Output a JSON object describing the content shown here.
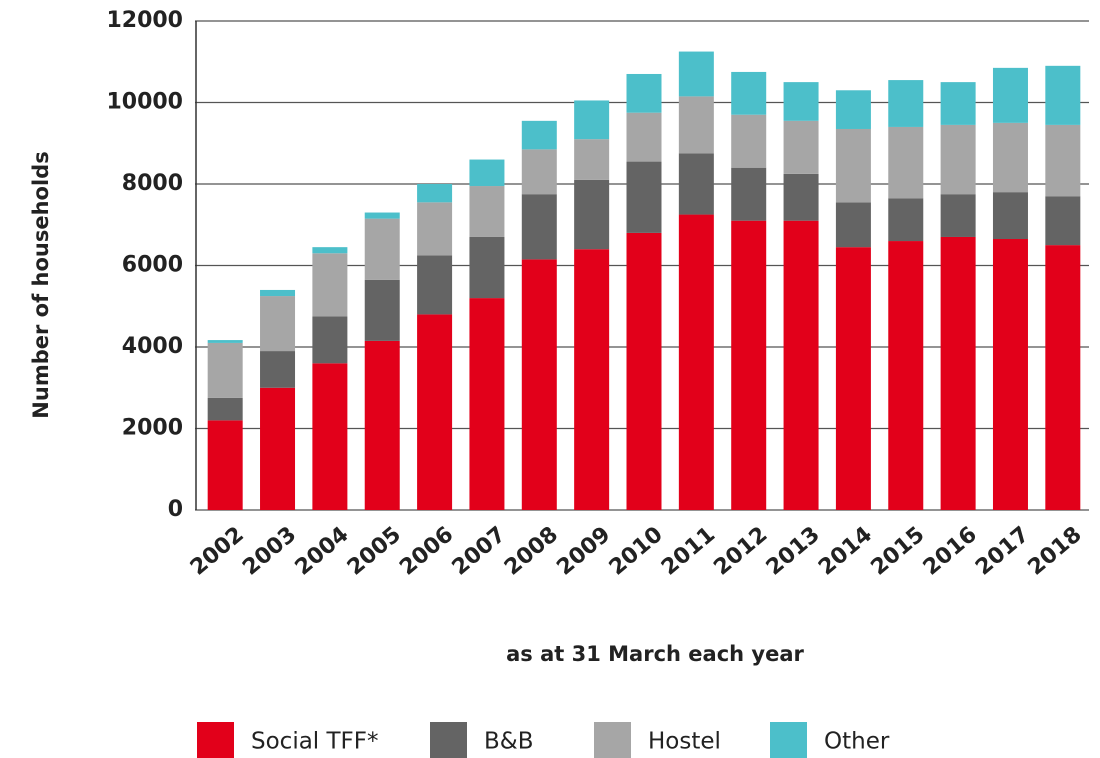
{
  "chart_data": {
    "type": "stacked_bar",
    "y_label": "Number of households",
    "x_label": "as at 31 March each year",
    "categories": [
      "2002",
      "2003",
      "2004",
      "2005",
      "2006",
      "2007",
      "2008",
      "2009",
      "2010",
      "2011",
      "2012",
      "2013",
      "2014",
      "2015",
      "2016",
      "2017",
      "2018"
    ],
    "series": [
      {
        "name": "Social TFF*",
        "color": "#e2001a",
        "values": [
          2200,
          3000,
          3600,
          4150,
          4800,
          5200,
          6150,
          6400,
          6800,
          7250,
          7100,
          7100,
          6450,
          6600,
          6700,
          6650,
          6500
        ]
      },
      {
        "name": "B&B",
        "color": "#646464",
        "values": [
          550,
          900,
          1150,
          1500,
          1450,
          1500,
          1600,
          1700,
          1750,
          1500,
          1300,
          1150,
          1100,
          1050,
          1050,
          1150,
          1200
        ]
      },
      {
        "name": "Hostel",
        "color": "#a6a6a6",
        "values": [
          1350,
          1350,
          1550,
          1500,
          1300,
          1250,
          1100,
          1000,
          1200,
          1400,
          1300,
          1300,
          1800,
          1750,
          1700,
          1700,
          1750
        ]
      },
      {
        "name": "Other",
        "color": "#4cbfca",
        "values": [
          70,
          150,
          150,
          150,
          450,
          650,
          700,
          950,
          950,
          1100,
          1050,
          950,
          950,
          1150,
          1050,
          1350,
          1450
        ]
      }
    ],
    "ylim": [
      0,
      12000
    ],
    "yticks": [
      0,
      2000,
      4000,
      6000,
      8000,
      10000,
      12000
    ],
    "grid": true,
    "legend": "bottom"
  }
}
